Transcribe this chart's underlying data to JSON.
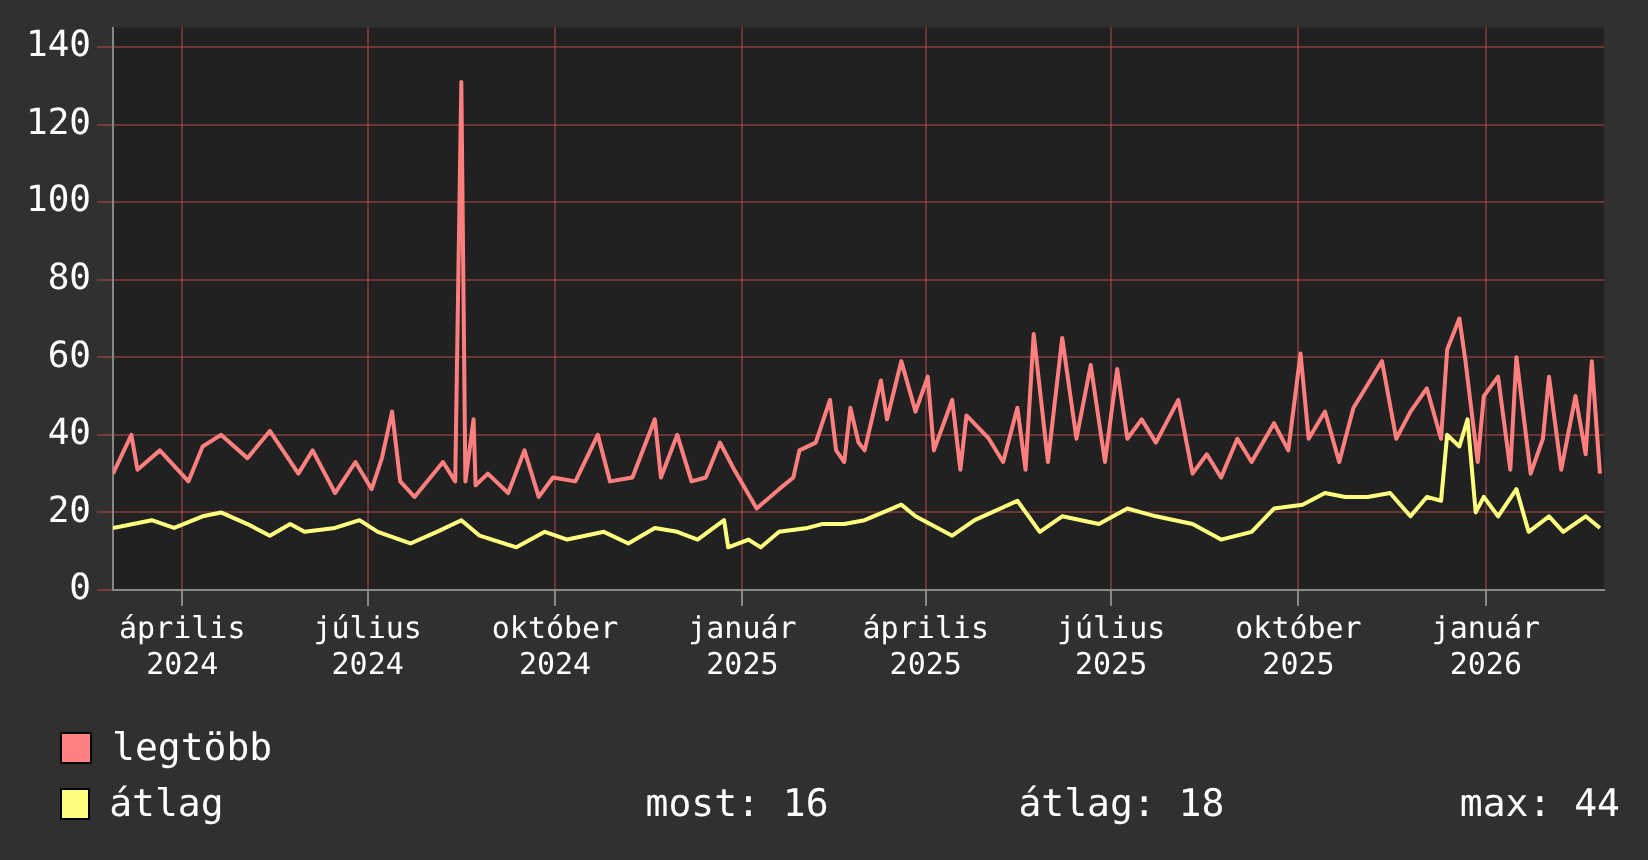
{
  "chart_data": {
    "type": "line",
    "xlim": [
      "2024-02-27",
      "2026-02-28"
    ],
    "ylim": [
      0,
      145
    ],
    "yticks": [
      0,
      20,
      40,
      60,
      80,
      100,
      120,
      140
    ],
    "xticks": [
      {
        "value": "2024-04-01",
        "label": "április 2024"
      },
      {
        "value": "2024-07-01",
        "label": "július 2024"
      },
      {
        "value": "2024-10-01",
        "label": "október 2024"
      },
      {
        "value": "2025-01-01",
        "label": "január 2025"
      },
      {
        "value": "2025-04-01",
        "label": "április 2025"
      },
      {
        "value": "2025-07-01",
        "label": "július 2025"
      },
      {
        "value": "2025-10-01",
        "label": "október 2025"
      },
      {
        "value": "2026-01-01",
        "label": "január 2026"
      }
    ],
    "grid": true,
    "legend": "bottom left",
    "marker": "none",
    "line_style": "solid",
    "annotations": [
      "most: 16",
      "átlag: 18",
      "max: 44"
    ],
    "series": [
      {
        "name": "legtöbb",
        "color": "#ff7f7f",
        "x": [
          "2024-02-27",
          "2024-03-07",
          "2024-03-10",
          "2024-03-21",
          "2024-04-04",
          "2024-04-11",
          "2024-04-20",
          "2024-05-03",
          "2024-05-14",
          "2024-05-28",
          "2024-06-04",
          "2024-06-15",
          "2024-06-25",
          "2024-07-03",
          "2024-07-08",
          "2024-07-13",
          "2024-07-17",
          "2024-07-24",
          "2024-08-07",
          "2024-08-13",
          "2024-08-16",
          "2024-08-18",
          "2024-08-22",
          "2024-08-23",
          "2024-08-29",
          "2024-09-08",
          "2024-09-16",
          "2024-09-23",
          "2024-09-30",
          "2024-10-11",
          "2024-10-22",
          "2024-10-28",
          "2024-11-08",
          "2024-11-19",
          "2024-11-22",
          "2024-11-30",
          "2024-12-07",
          "2024-12-14",
          "2024-12-21",
          "2024-12-28",
          "2025-01-08",
          "2025-01-19",
          "2025-01-26",
          "2025-01-29",
          "2025-02-06",
          "2025-02-13",
          "2025-02-16",
          "2025-02-20",
          "2025-02-23",
          "2025-02-27",
          "2025-03-02",
          "2025-03-10",
          "2025-03-13",
          "2025-03-20",
          "2025-03-27",
          "2025-04-02",
          "2025-04-05",
          "2025-04-14",
          "2025-04-18",
          "2025-04-21",
          "2025-05-02",
          "2025-05-09",
          "2025-05-16",
          "2025-05-20",
          "2025-05-24",
          "2025-05-31",
          "2025-06-07",
          "2025-06-14",
          "2025-06-21",
          "2025-06-28",
          "2025-07-04",
          "2025-07-09",
          "2025-07-16",
          "2025-07-23",
          "2025-08-03",
          "2025-08-10",
          "2025-08-17",
          "2025-08-24",
          "2025-09-01",
          "2025-09-08",
          "2025-09-19",
          "2025-09-26",
          "2025-10-02",
          "2025-10-06",
          "2025-10-14",
          "2025-10-21",
          "2025-10-28",
          "2025-11-04",
          "2025-11-11",
          "2025-11-18",
          "2025-11-25",
          "2025-12-03",
          "2025-12-10",
          "2025-12-13",
          "2025-12-19",
          "2025-12-22",
          "2025-12-28",
          "2025-12-31",
          "2026-01-07",
          "2026-01-13",
          "2026-01-16",
          "2026-01-23",
          "2026-01-29",
          "2026-02-01",
          "2026-02-07",
          "2026-02-14",
          "2026-02-19",
          "2026-02-22",
          "2026-02-26"
        ],
        "values": [
          30,
          40,
          31,
          36,
          28,
          37,
          40,
          34,
          41,
          30,
          36,
          25,
          33,
          26,
          34,
          46,
          28,
          24,
          33,
          28,
          131,
          28,
          44,
          27,
          30,
          25,
          36,
          24,
          29,
          28,
          40,
          28,
          29,
          44,
          29,
          40,
          28,
          29,
          38,
          31,
          21,
          26,
          29,
          36,
          38,
          49,
          36,
          33,
          47,
          38,
          36,
          54,
          44,
          59,
          46,
          55,
          36,
          49,
          31,
          45,
          39,
          33,
          47,
          31,
          66,
          33,
          65,
          39,
          58,
          33,
          57,
          39,
          44,
          38,
          49,
          30,
          35,
          29,
          39,
          33,
          43,
          36,
          61,
          39,
          46,
          33,
          47,
          53,
          59,
          39,
          46,
          52,
          39,
          62,
          70,
          59,
          33,
          50,
          55,
          31,
          60,
          30,
          39,
          55,
          31,
          50,
          35,
          59,
          30
        ]
      },
      {
        "name": "átlag",
        "color": "#ffff7f",
        "x": [
          "2024-02-27",
          "2024-03-17",
          "2024-03-28",
          "2024-04-11",
          "2024-04-20",
          "2024-05-03",
          "2024-05-14",
          "2024-05-24",
          "2024-05-31",
          "2024-06-15",
          "2024-06-27",
          "2024-07-06",
          "2024-07-22",
          "2024-08-04",
          "2024-08-16",
          "2024-08-25",
          "2024-09-12",
          "2024-09-26",
          "2024-10-07",
          "2024-10-25",
          "2024-11-06",
          "2024-11-19",
          "2024-11-30",
          "2024-12-10",
          "2024-12-23",
          "2024-12-25",
          "2025-01-04",
          "2025-01-10",
          "2025-01-19",
          "2025-02-02",
          "2025-02-09",
          "2025-02-20",
          "2025-03-02",
          "2025-03-20",
          "2025-03-27",
          "2025-04-14",
          "2025-04-25",
          "2025-05-16",
          "2025-05-27",
          "2025-06-07",
          "2025-06-25",
          "2025-07-09",
          "2025-07-23",
          "2025-08-10",
          "2025-08-24",
          "2025-09-08",
          "2025-09-19",
          "2025-10-03",
          "2025-10-14",
          "2025-10-24",
          "2025-11-04",
          "2025-11-15",
          "2025-11-25",
          "2025-12-03",
          "2025-12-10",
          "2025-12-13",
          "2025-12-19",
          "2025-12-23",
          "2025-12-27",
          "2025-12-31",
          "2026-01-07",
          "2026-01-16",
          "2026-01-22",
          "2026-02-01",
          "2026-02-08",
          "2026-02-19",
          "2026-02-26"
        ],
        "values": [
          16,
          18,
          16,
          19,
          20,
          17,
          14,
          17,
          15,
          16,
          18,
          15,
          12,
          15,
          18,
          14,
          11,
          15,
          13,
          15,
          12,
          16,
          15,
          13,
          18,
          11,
          13,
          11,
          15,
          16,
          17,
          17,
          18,
          22,
          19,
          14,
          18,
          23,
          15,
          19,
          17,
          21,
          19,
          17,
          13,
          15,
          21,
          22,
          25,
          24,
          24,
          25,
          19,
          24,
          23,
          40,
          37,
          44,
          20,
          24,
          19,
          26,
          15,
          19,
          15,
          19,
          16
        ]
      }
    ]
  }
}
